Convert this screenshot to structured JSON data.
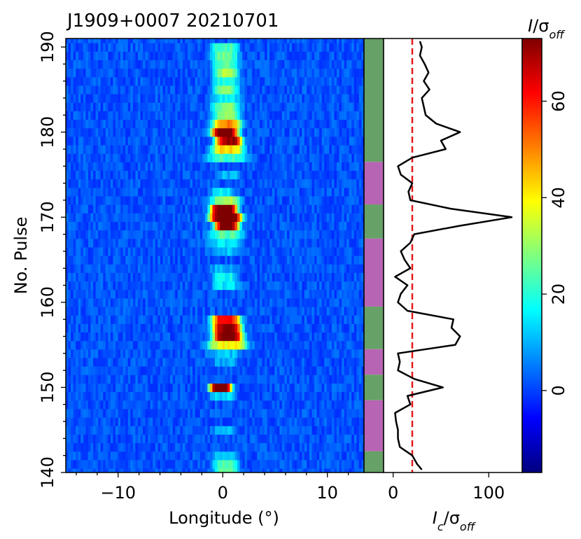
{
  "title": "J1909+0007 20210701",
  "chart_data": [
    {
      "type": "heatmap",
      "xlabel": "Longitude (°)",
      "ylabel": "No. Pulse",
      "xlim": [
        -15,
        13.5
      ],
      "ylim": [
        140,
        191
      ],
      "xticks": [
        -10,
        0,
        10
      ],
      "xtick_labels": [
        "−10",
        "0",
        "10"
      ],
      "yticks": [
        140,
        150,
        160,
        170,
        180,
        190
      ],
      "ytick_labels": [
        "140",
        "150",
        "160",
        "170",
        "180",
        "190"
      ],
      "emission_components": [
        {
          "pulse": 190,
          "center": 0.2,
          "width": 1.1,
          "peak": 22
        },
        {
          "pulse": 189,
          "center": 0.2,
          "width": 1.1,
          "peak": 24
        },
        {
          "pulse": 188,
          "center": 0.3,
          "width": 1.1,
          "peak": 22
        },
        {
          "pulse": 187,
          "center": 0.3,
          "width": 1.0,
          "peak": 30
        },
        {
          "pulse": 186,
          "center": 0.3,
          "width": 1.1,
          "peak": 18
        },
        {
          "pulse": 185,
          "center": 0.3,
          "width": 1.0,
          "peak": 28
        },
        {
          "pulse": 184,
          "center": 0.2,
          "width": 1.2,
          "peak": 15
        },
        {
          "pulse": 183,
          "center": 0.3,
          "width": 1.2,
          "peak": 26
        },
        {
          "pulse": 182,
          "center": 0.3,
          "width": 1.1,
          "peak": 28
        },
        {
          "pulse": 181,
          "center": 0.4,
          "width": 1.2,
          "peak": 48
        },
        {
          "pulse": 180,
          "center": 0.2,
          "width": 1.1,
          "peak": 75
        },
        {
          "pulse": 179,
          "center": 0.6,
          "width": 1.1,
          "peak": 70
        },
        {
          "pulse": 178,
          "center": 0.5,
          "width": 1.3,
          "peak": 42
        },
        {
          "pulse": 177,
          "center": 0.4,
          "width": 1.6,
          "peak": 20
        },
        {
          "pulse": 175,
          "center": 0.5,
          "width": 1.0,
          "peak": 9
        },
        {
          "pulse": 173,
          "center": 0.0,
          "width": 1.0,
          "peak": 14
        },
        {
          "pulse": 172,
          "center": 0.3,
          "width": 1.2,
          "peak": 30
        },
        {
          "pulse": 171,
          "center": 0.1,
          "width": 1.1,
          "peak": 78
        },
        {
          "pulse": 170,
          "center": 0.3,
          "width": 1.3,
          "peak": 80
        },
        {
          "pulse": 169,
          "center": 0.4,
          "width": 1.0,
          "peak": 75
        },
        {
          "pulse": 168,
          "center": 0.3,
          "width": 1.4,
          "peak": 22
        },
        {
          "pulse": 167,
          "center": 0.2,
          "width": 1.3,
          "peak": 14
        },
        {
          "pulse": 166,
          "center": 0.3,
          "width": 1.3,
          "peak": 10
        },
        {
          "pulse": 164,
          "center": 0.0,
          "width": 1.2,
          "peak": 8
        },
        {
          "pulse": 163,
          "center": 0.2,
          "width": 1.0,
          "peak": 16
        },
        {
          "pulse": 162,
          "center": 0.3,
          "width": 1.1,
          "peak": 14
        },
        {
          "pulse": 158,
          "center": 0.3,
          "width": 1.2,
          "peak": 60
        },
        {
          "pulse": 157,
          "center": 0.4,
          "width": 1.2,
          "peak": 70
        },
        {
          "pulse": 156,
          "center": 0.5,
          "width": 1.2,
          "peak": 75
        },
        {
          "pulse": 155,
          "center": 0.5,
          "width": 1.6,
          "peak": 38
        },
        {
          "pulse": 154,
          "center": 0.2,
          "width": 1.4,
          "peak": 10
        },
        {
          "pulse": 153,
          "center": 0.2,
          "width": 1.0,
          "peak": 8
        },
        {
          "pulse": 150,
          "center": -0.2,
          "width": 0.9,
          "peak": 78
        },
        {
          "pulse": 149,
          "center": 0.0,
          "width": 1.0,
          "peak": 12
        },
        {
          "pulse": 145,
          "center": 0.2,
          "width": 1.0,
          "peak": 8
        },
        {
          "pulse": 142,
          "center": 0.3,
          "width": 1.1,
          "peak": 10
        },
        {
          "pulse": 141,
          "center": 0.3,
          "width": 1.0,
          "peak": 22
        },
        {
          "pulse": 140,
          "center": 0.3,
          "width": 1.0,
          "peak": 26
        }
      ]
    },
    {
      "type": "state-bar",
      "segments": [
        {
          "from": 140,
          "to": 142.5,
          "state": "on"
        },
        {
          "from": 142.5,
          "to": 148.5,
          "state": "off"
        },
        {
          "from": 148.5,
          "to": 151.5,
          "state": "on"
        },
        {
          "from": 151.5,
          "to": 154.5,
          "state": "off"
        },
        {
          "from": 154.5,
          "to": 159.5,
          "state": "on"
        },
        {
          "from": 159.5,
          "to": 167.5,
          "state": "off"
        },
        {
          "from": 167.5,
          "to": 171.5,
          "state": "on"
        },
        {
          "from": 171.5,
          "to": 176.5,
          "state": "off"
        },
        {
          "from": 176.5,
          "to": 191,
          "state": "on"
        }
      ],
      "colors": {
        "on": "#66a167",
        "off": "#b864b4"
      }
    },
    {
      "type": "line",
      "xlabel": "I_c/σ_off",
      "xlim": [
        -10,
        135
      ],
      "xticks": [
        0,
        100
      ],
      "xtick_labels": [
        "0",
        "100"
      ],
      "threshold": 20,
      "threshold_color": "#e41a1c",
      "line_color": "#000000",
      "points": [
        [
          140,
          30
        ],
        [
          141,
          25
        ],
        [
          142,
          20
        ],
        [
          143,
          7
        ],
        [
          144,
          5
        ],
        [
          145,
          5
        ],
        [
          146,
          3
        ],
        [
          147,
          2
        ],
        [
          148,
          18
        ],
        [
          149,
          15
        ],
        [
          150,
          52
        ],
        [
          151,
          22
        ],
        [
          152,
          5
        ],
        [
          153,
          7
        ],
        [
          154,
          5
        ],
        [
          155,
          65
        ],
        [
          156,
          70
        ],
        [
          157,
          61
        ],
        [
          158,
          63
        ],
        [
          159,
          15
        ],
        [
          160,
          5
        ],
        [
          161,
          8
        ],
        [
          162,
          15
        ],
        [
          163,
          2
        ],
        [
          164,
          18
        ],
        [
          165,
          12
        ],
        [
          166,
          8
        ],
        [
          167,
          18
        ],
        [
          168,
          22
        ],
        [
          169,
          70
        ],
        [
          170,
          124
        ],
        [
          171,
          60
        ],
        [
          172,
          18
        ],
        [
          173,
          16
        ],
        [
          174,
          20
        ],
        [
          175,
          8
        ],
        [
          176,
          5
        ],
        [
          177,
          20
        ],
        [
          178,
          55
        ],
        [
          179,
          50
        ],
        [
          180,
          70
        ],
        [
          181,
          45
        ],
        [
          182,
          34
        ],
        [
          183,
          32
        ],
        [
          184,
          30
        ],
        [
          185,
          38
        ],
        [
          186,
          32
        ],
        [
          187,
          37
        ],
        [
          188,
          33
        ],
        [
          189,
          28
        ],
        [
          190,
          30
        ],
        [
          191,
          28
        ]
      ]
    },
    {
      "type": "colorbar",
      "label": "I/σ_off",
      "range": [
        -17,
        73
      ],
      "ticks": [
        0,
        20,
        40,
        60
      ],
      "tick_labels": [
        "0",
        "20",
        "40",
        "60"
      ],
      "colormap": "jet",
      "colormap_stops": [
        "#00007f",
        "#0000ff",
        "#007fff",
        "#00ffff",
        "#7fff7f",
        "#ffff00",
        "#ff7f00",
        "#ff0000",
        "#7f0000"
      ]
    }
  ]
}
